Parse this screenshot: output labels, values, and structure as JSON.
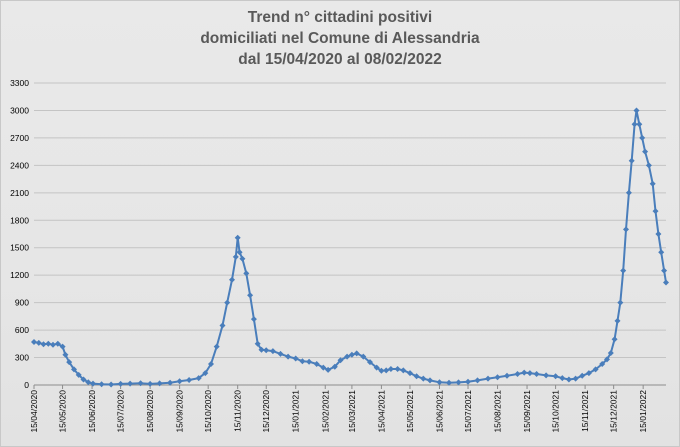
{
  "chart_data": {
    "type": "line",
    "title_lines": [
      "Trend n° cittadini positivi",
      "domiciliati nel Comune di Alessandria",
      "dal 15/04/2020 al 08/02/2022"
    ],
    "xlabel": "",
    "ylabel": "",
    "ylim": [
      0,
      3300
    ],
    "yticks": [
      "0",
      "300",
      "600",
      "900",
      "1200",
      "1500",
      "1800",
      "2100",
      "2400",
      "2700",
      "3000",
      "3300"
    ],
    "x_ticks": [
      "15/04/2020",
      "15/05/2020",
      "15/06/2020",
      "15/07/2020",
      "15/08/2020",
      "15/09/2020",
      "15/10/2020",
      "15/11/2020",
      "15/12/2020",
      "15/01/2021",
      "15/02/2021",
      "15/03/2021",
      "15/04/2021",
      "15/05/2021",
      "15/06/2021",
      "15/07/2021",
      "15/08/2021",
      "15/09/2021",
      "15/10/2021",
      "15/11/2021",
      "15/12/2021",
      "15/01/2022"
    ],
    "x_range": [
      "15/04/2020",
      "08/02/2022"
    ],
    "grid": true,
    "legend": "none",
    "marker": "diamond",
    "line_color": "#4a7ebb",
    "series": [
      {
        "points": [
          [
            "15/04/2020",
            470
          ],
          [
            "20/04/2020",
            460
          ],
          [
            "25/04/2020",
            445
          ],
          [
            "30/04/2020",
            450
          ],
          [
            "05/05/2020",
            440
          ],
          [
            "10/05/2020",
            450
          ],
          [
            "15/05/2020",
            420
          ],
          [
            "18/05/2020",
            330
          ],
          [
            "22/05/2020",
            250
          ],
          [
            "27/05/2020",
            170
          ],
          [
            "01/06/2020",
            110
          ],
          [
            "06/06/2020",
            60
          ],
          [
            "11/06/2020",
            30
          ],
          [
            "16/06/2020",
            15
          ],
          [
            "25/06/2020",
            8
          ],
          [
            "05/07/2020",
            5
          ],
          [
            "15/07/2020",
            12
          ],
          [
            "25/07/2020",
            15
          ],
          [
            "05/08/2020",
            20
          ],
          [
            "15/08/2020",
            12
          ],
          [
            "25/08/2020",
            18
          ],
          [
            "05/09/2020",
            25
          ],
          [
            "15/09/2020",
            40
          ],
          [
            "25/09/2020",
            55
          ],
          [
            "05/10/2020",
            75
          ],
          [
            "12/10/2020",
            130
          ],
          [
            "18/10/2020",
            230
          ],
          [
            "24/10/2020",
            420
          ],
          [
            "30/10/2020",
            650
          ],
          [
            "04/11/2020",
            900
          ],
          [
            "09/11/2020",
            1150
          ],
          [
            "13/11/2020",
            1400
          ],
          [
            "15/11/2020",
            1610
          ],
          [
            "17/11/2020",
            1450
          ],
          [
            "20/11/2020",
            1380
          ],
          [
            "24/11/2020",
            1220
          ],
          [
            "28/11/2020",
            980
          ],
          [
            "02/12/2020",
            720
          ],
          [
            "06/12/2020",
            450
          ],
          [
            "10/12/2020",
            385
          ],
          [
            "15/12/2020",
            380
          ],
          [
            "22/12/2020",
            370
          ],
          [
            "30/12/2020",
            340
          ],
          [
            "07/01/2021",
            310
          ],
          [
            "15/01/2021",
            290
          ],
          [
            "22/01/2021",
            260
          ],
          [
            "29/01/2021",
            255
          ],
          [
            "06/02/2021",
            230
          ],
          [
            "13/02/2021",
            190
          ],
          [
            "18/02/2021",
            165
          ],
          [
            "25/02/2021",
            200
          ],
          [
            "03/03/2021",
            270
          ],
          [
            "10/03/2021",
            310
          ],
          [
            "15/03/2021",
            330
          ],
          [
            "20/03/2021",
            345
          ],
          [
            "27/03/2021",
            310
          ],
          [
            "03/04/2021",
            250
          ],
          [
            "10/04/2021",
            190
          ],
          [
            "15/04/2021",
            155
          ],
          [
            "20/04/2021",
            160
          ],
          [
            "25/04/2021",
            175
          ],
          [
            "02/05/2021",
            175
          ],
          [
            "08/05/2021",
            160
          ],
          [
            "15/05/2021",
            130
          ],
          [
            "22/05/2021",
            95
          ],
          [
            "29/05/2021",
            70
          ],
          [
            "05/06/2021",
            50
          ],
          [
            "15/06/2021",
            30
          ],
          [
            "25/06/2021",
            25
          ],
          [
            "05/07/2021",
            28
          ],
          [
            "15/07/2021",
            35
          ],
          [
            "25/07/2021",
            50
          ],
          [
            "05/08/2021",
            70
          ],
          [
            "15/08/2021",
            85
          ],
          [
            "25/08/2021",
            100
          ],
          [
            "05/09/2021",
            120
          ],
          [
            "12/09/2021",
            135
          ],
          [
            "18/09/2021",
            130
          ],
          [
            "25/09/2021",
            120
          ],
          [
            "05/10/2021",
            105
          ],
          [
            "15/10/2021",
            95
          ],
          [
            "22/10/2021",
            75
          ],
          [
            "29/10/2021",
            60
          ],
          [
            "05/11/2021",
            70
          ],
          [
            "12/11/2021",
            100
          ],
          [
            "19/11/2021",
            130
          ],
          [
            "26/11/2021",
            170
          ],
          [
            "03/12/2021",
            230
          ],
          [
            "08/12/2021",
            280
          ],
          [
            "12/12/2021",
            350
          ],
          [
            "16/12/2021",
            500
          ],
          [
            "19/12/2021",
            700
          ],
          [
            "22/12/2021",
            900
          ],
          [
            "25/12/2021",
            1250
          ],
          [
            "28/12/2021",
            1700
          ],
          [
            "31/12/2021",
            2100
          ],
          [
            "03/01/2022",
            2450
          ],
          [
            "06/01/2022",
            2850
          ],
          [
            "08/01/2022",
            3000
          ],
          [
            "11/01/2022",
            2850
          ],
          [
            "14/01/2022",
            2700
          ],
          [
            "17/01/2022",
            2550
          ],
          [
            "21/01/2022",
            2400
          ],
          [
            "25/01/2022",
            2200
          ],
          [
            "28/01/2022",
            1900
          ],
          [
            "31/01/2022",
            1650
          ],
          [
            "03/02/2022",
            1450
          ],
          [
            "06/02/2022",
            1250
          ],
          [
            "08/02/2022",
            1120
          ]
        ]
      }
    ]
  }
}
